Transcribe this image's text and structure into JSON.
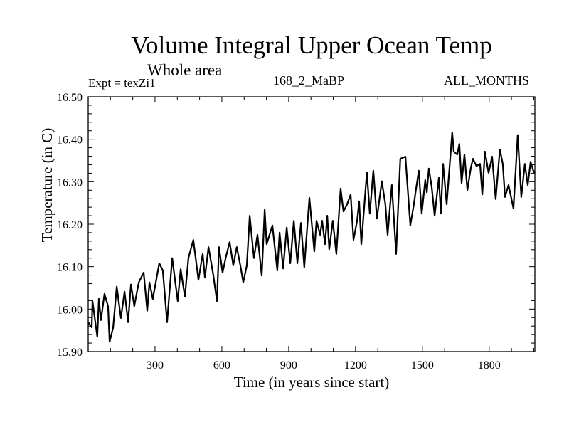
{
  "chart_data": {
    "type": "line",
    "title": "Volume Integral Upper Ocean Temp",
    "subtitle": "Whole area",
    "annotations": {
      "left": "Expt = texZi1",
      "center": "168_2_MaBP",
      "right": "ALL_MONTHS"
    },
    "xlabel": "Time (in years since start)",
    "ylabel": "Temperature (in C)",
    "xlim": [
      0,
      2005
    ],
    "ylim": [
      15.9,
      16.5
    ],
    "x_ticks": [
      300,
      600,
      900,
      1200,
      1500,
      1800
    ],
    "x_tick_labels": [
      "300",
      "600",
      "900",
      "1200",
      "1500",
      "1800"
    ],
    "x_minor_step": 100,
    "y_ticks": [
      15.9,
      16.0,
      16.1,
      16.2,
      16.3,
      16.4,
      16.5
    ],
    "y_tick_labels": [
      "15.90",
      "16.00",
      "16.10",
      "16.20",
      "16.30",
      "16.40",
      "16.50"
    ],
    "y_minor_step": 0.02,
    "grid": false,
    "legend": "none",
    "line_color": "#000000",
    "series": [
      {
        "name": "Volume Integral Upper Ocean Temp",
        "x": [
          0,
          16,
          19,
          41,
          48,
          57,
          73,
          89,
          96,
          112,
          128,
          147,
          163,
          179,
          192,
          207,
          227,
          249,
          265,
          275,
          290,
          319,
          335,
          354,
          377,
          402,
          415,
          434,
          450,
          472,
          495,
          514,
          524,
          540,
          562,
          578,
          587,
          603,
          619,
          635,
          651,
          667,
          683,
          696,
          712,
          725,
          744,
          760,
          779,
          792,
          801,
          827,
          849,
          859,
          875,
          891,
          907,
          923,
          939,
          955,
          970,
          993,
          1015,
          1025,
          1041,
          1050,
          1063,
          1073,
          1082,
          1098,
          1114,
          1133,
          1146,
          1162,
          1178,
          1191,
          1207,
          1216,
          1226,
          1251,
          1264,
          1280,
          1296,
          1318,
          1334,
          1344,
          1363,
          1382,
          1401,
          1424,
          1446,
          1462,
          1468,
          1484,
          1497,
          1513,
          1520,
          1529,
          1542,
          1555,
          1574,
          1583,
          1593,
          1609,
          1634,
          1641,
          1657,
          1666,
          1676,
          1689,
          1702,
          1717,
          1727,
          1743,
          1759,
          1769,
          1781,
          1797,
          1813,
          1829,
          1848,
          1861,
          1871,
          1887,
          1909,
          1928,
          1944,
          1960,
          1973,
          1986,
          1998,
          2005
        ],
        "y": [
          15.969,
          15.957,
          16.019,
          15.935,
          16.024,
          15.974,
          16.036,
          16.007,
          15.923,
          15.957,
          16.053,
          15.979,
          16.041,
          15.969,
          16.058,
          16.007,
          16.063,
          16.086,
          15.996,
          16.063,
          16.024,
          16.108,
          16.091,
          15.969,
          16.12,
          16.019,
          16.094,
          16.029,
          16.12,
          16.163,
          16.069,
          16.13,
          16.074,
          16.146,
          16.079,
          16.019,
          16.146,
          16.086,
          16.125,
          16.158,
          16.103,
          16.146,
          16.103,
          16.063,
          16.103,
          16.22,
          16.12,
          16.175,
          16.079,
          16.234,
          16.153,
          16.197,
          16.091,
          16.18,
          16.096,
          16.192,
          16.108,
          16.208,
          16.108,
          16.203,
          16.099,
          16.262,
          16.136,
          16.208,
          16.175,
          16.208,
          16.153,
          16.22,
          16.141,
          16.208,
          16.13,
          16.284,
          16.23,
          16.247,
          16.27,
          16.163,
          16.208,
          16.254,
          16.153,
          16.322,
          16.225,
          16.326,
          16.213,
          16.301,
          16.247,
          16.175,
          16.292,
          16.13,
          16.354,
          16.359,
          16.197,
          16.247,
          16.27,
          16.326,
          16.225,
          16.304,
          16.275,
          16.331,
          16.287,
          16.22,
          16.309,
          16.225,
          16.342,
          16.247,
          16.416,
          16.371,
          16.364,
          16.389,
          16.297,
          16.364,
          16.28,
          16.331,
          16.354,
          16.337,
          16.342,
          16.27,
          16.371,
          16.321,
          16.359,
          16.259,
          16.376,
          16.342,
          16.264,
          16.292,
          16.237,
          16.41,
          16.264,
          16.342,
          16.292,
          16.347,
          16.326,
          16.321
        ]
      }
    ]
  }
}
